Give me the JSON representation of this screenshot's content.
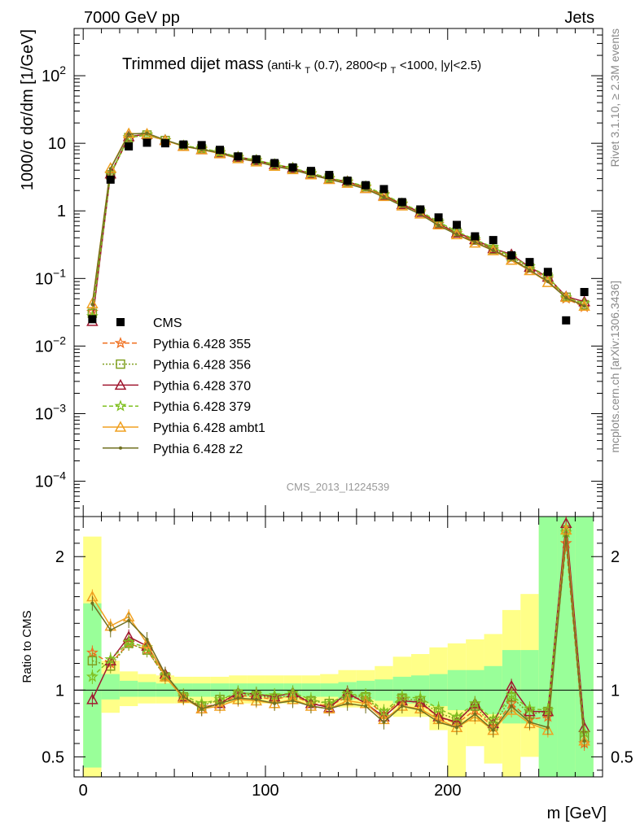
{
  "header": {
    "left": "7000 GeV pp",
    "right": "Jets"
  },
  "side_text": {
    "rivet": "Rivet 3.1.10, ≥ 2.3M events",
    "mcplots": "mcplots.cern.ch [arXiv:1306.3436]"
  },
  "watermark": "CMS_2013_I1224539",
  "chart_data": [
    {
      "type": "line",
      "title": "Trimmed dijet mass",
      "subtitle_parts": [
        "(anti-k",
        "T",
        "(0.7), 2800<p",
        "T",
        "<1000, |y|<2.5)"
      ],
      "ylabel": "1000/σ dσ/dm [1/GeV]",
      "yscale": "log",
      "ylim": [
        3e-05,
        500
      ],
      "xlim": [
        -5,
        285
      ],
      "yticks": [
        {
          "v": 100,
          "label": "10",
          "sup": "2"
        },
        {
          "v": 10,
          "label": "10",
          "sup": ""
        },
        {
          "v": 1,
          "label": "1",
          "sup": ""
        },
        {
          "v": 0.1,
          "label": "10",
          "sup": "−1"
        },
        {
          "v": 0.01,
          "label": "10",
          "sup": "−2"
        },
        {
          "v": 0.001,
          "label": "10",
          "sup": "−3"
        },
        {
          "v": 0.0001,
          "label": "10",
          "sup": "−4"
        }
      ],
      "x": [
        5,
        15,
        25,
        35,
        45,
        55,
        65,
        75,
        85,
        95,
        105,
        115,
        125,
        135,
        145,
        155,
        165,
        175,
        185,
        195,
        205,
        215,
        225,
        235,
        245,
        255,
        265,
        275
      ],
      "data": {
        "name": "CMS",
        "values": [
          0.025,
          2.9,
          9.0,
          10.2,
          10.0,
          9.6,
          9.4,
          8.0,
          6.4,
          5.8,
          5.1,
          4.4,
          3.9,
          3.4,
          2.8,
          2.4,
          2.1,
          1.35,
          1.05,
          0.8,
          0.62,
          0.42,
          0.37,
          0.22,
          0.175,
          0.125,
          0.024,
          0.063
        ]
      },
      "legend": [
        "CMS",
        "Pythia 6.428 355",
        "Pythia 6.428 356",
        "Pythia 6.428 370",
        "Pythia 6.428 379",
        "Pythia 6.428 ambt1",
        "Pythia 6.428 z2"
      ]
    },
    {
      "type": "line",
      "ylabel": "Ratio to CMS",
      "xlabel": "m [GeV]",
      "ylim": [
        0.35,
        2.3
      ],
      "xticks": [
        {
          "v": 0,
          "label": "0"
        },
        {
          "v": 100,
          "label": "100"
        },
        {
          "v": 200,
          "label": "200"
        }
      ],
      "yticks": [
        {
          "v": 0.5,
          "label": "0.5"
        },
        {
          "v": 1,
          "label": "1"
        },
        {
          "v": 2,
          "label": "2"
        }
      ],
      "bands": {
        "bins": [
          [
            0,
            10
          ],
          [
            10,
            20
          ],
          [
            20,
            30
          ],
          [
            30,
            40
          ],
          [
            40,
            50
          ],
          [
            50,
            60
          ],
          [
            60,
            70
          ],
          [
            70,
            80
          ],
          [
            80,
            90
          ],
          [
            90,
            100
          ],
          [
            100,
            110
          ],
          [
            110,
            120
          ],
          [
            120,
            130
          ],
          [
            130,
            140
          ],
          [
            140,
            150
          ],
          [
            150,
            160
          ],
          [
            160,
            170
          ],
          [
            170,
            180
          ],
          [
            180,
            190
          ],
          [
            190,
            200
          ],
          [
            200,
            210
          ],
          [
            210,
            220
          ],
          [
            220,
            230
          ],
          [
            230,
            240
          ],
          [
            240,
            250
          ],
          [
            250,
            260
          ],
          [
            260,
            270
          ],
          [
            270,
            280
          ]
        ],
        "green": [
          [
            0.42,
            1.65
          ],
          [
            0.93,
            1.12
          ],
          [
            0.95,
            1.07
          ],
          [
            0.95,
            1.06
          ],
          [
            0.95,
            1.05
          ],
          [
            0.95,
            1.05
          ],
          [
            0.95,
            1.05
          ],
          [
            0.95,
            1.05
          ],
          [
            0.95,
            1.05
          ],
          [
            0.95,
            1.05
          ],
          [
            0.95,
            1.05
          ],
          [
            0.95,
            1.05
          ],
          [
            0.95,
            1.05
          ],
          [
            0.95,
            1.05
          ],
          [
            0.93,
            1.06
          ],
          [
            0.93,
            1.07
          ],
          [
            0.92,
            1.08
          ],
          [
            0.9,
            1.1
          ],
          [
            0.9,
            1.11
          ],
          [
            0.88,
            1.12
          ],
          [
            0.85,
            1.15
          ],
          [
            0.85,
            1.15
          ],
          [
            0.82,
            1.18
          ],
          [
            0.75,
            1.3
          ],
          [
            0.75,
            1.3
          ],
          [
            0.35,
            2.3
          ],
          [
            0.35,
            2.3
          ],
          [
            0.35,
            2.3
          ]
        ],
        "yellow": [
          [
            0.35,
            2.15
          ],
          [
            0.83,
            1.22
          ],
          [
            0.88,
            1.14
          ],
          [
            0.9,
            1.12
          ],
          [
            0.9,
            1.11
          ],
          [
            0.9,
            1.1
          ],
          [
            0.9,
            1.1
          ],
          [
            0.9,
            1.1
          ],
          [
            0.9,
            1.11
          ],
          [
            0.9,
            1.11
          ],
          [
            0.9,
            1.11
          ],
          [
            0.9,
            1.11
          ],
          [
            0.9,
            1.11
          ],
          [
            0.89,
            1.12
          ],
          [
            0.87,
            1.15
          ],
          [
            0.87,
            1.15
          ],
          [
            0.85,
            1.18
          ],
          [
            0.8,
            1.25
          ],
          [
            0.8,
            1.27
          ],
          [
            0.7,
            1.32
          ],
          [
            0.35,
            1.35
          ],
          [
            0.58,
            1.38
          ],
          [
            0.45,
            1.42
          ],
          [
            0.35,
            1.6
          ],
          [
            0.5,
            1.72
          ],
          [
            0.35,
            2.3
          ],
          [
            0.35,
            2.3
          ],
          [
            0.35,
            2.3
          ]
        ]
      },
      "series": [
        {
          "name": "Pythia 6.428 355",
          "color": "#f07020",
          "dash": "6,3",
          "marker": "star",
          "ratio": [
            1.28,
            1.2,
            1.35,
            1.3,
            1.1,
            0.95,
            0.87,
            0.9,
            0.96,
            0.95,
            0.93,
            0.96,
            0.9,
            0.88,
            0.95,
            0.93,
            0.82,
            0.93,
            0.9,
            0.8,
            0.75,
            0.85,
            0.72,
            0.9,
            0.78,
            0.8,
            2.1,
            0.6
          ]
        },
        {
          "name": "Pythia 6.428 356",
          "color": "#80a020",
          "dash": "2,2",
          "marker": "opensquare",
          "ratio": [
            1.22,
            1.18,
            1.35,
            1.3,
            1.1,
            0.95,
            0.88,
            0.93,
            0.97,
            0.96,
            0.94,
            0.96,
            0.92,
            0.9,
            0.96,
            0.95,
            0.82,
            0.94,
            0.92,
            0.83,
            0.78,
            0.88,
            0.73,
            0.95,
            0.82,
            0.84,
            2.2,
            0.65
          ]
        },
        {
          "name": "Pythia 6.428 370",
          "color": "#a01830",
          "dash": "",
          "marker": "opentriangle",
          "ratio": [
            0.93,
            1.22,
            1.4,
            1.33,
            1.12,
            0.95,
            0.86,
            0.9,
            0.98,
            0.97,
            0.95,
            0.98,
            0.9,
            0.87,
            0.98,
            0.9,
            0.8,
            0.92,
            0.91,
            0.8,
            0.76,
            0.9,
            0.75,
            1.03,
            0.84,
            0.84,
            2.25,
            0.72
          ]
        },
        {
          "name": "Pythia 6.428 379",
          "color": "#80c020",
          "dash": "5,3",
          "marker": "star",
          "ratio": [
            1.1,
            1.23,
            1.36,
            1.32,
            1.11,
            0.96,
            0.9,
            0.93,
            0.98,
            0.97,
            0.96,
            0.98,
            0.93,
            0.9,
            0.97,
            0.96,
            0.84,
            0.95,
            0.94,
            0.86,
            0.8,
            0.9,
            0.78,
            0.96,
            0.86,
            0.85,
            2.18,
            0.68
          ]
        },
        {
          "name": "Pythia 6.428 ambt1",
          "color": "#f0a020",
          "dash": "",
          "marker": "opentriangle",
          "ratio": [
            1.7,
            1.48,
            1.55,
            1.35,
            1.1,
            0.94,
            0.86,
            0.88,
            0.93,
            0.92,
            0.9,
            0.93,
            0.88,
            0.86,
            0.92,
            0.9,
            0.78,
            0.88,
            0.86,
            0.78,
            0.72,
            0.8,
            0.7,
            0.85,
            0.75,
            0.7,
            2.2,
            0.62
          ]
        },
        {
          "name": "Pythia 6.428 z2",
          "color": "#707020",
          "dash": "",
          "marker": "dot",
          "ratio": [
            1.65,
            1.45,
            1.52,
            1.38,
            1.12,
            0.95,
            0.86,
            0.9,
            0.94,
            0.93,
            0.9,
            0.92,
            0.88,
            0.86,
            0.9,
            0.88,
            0.76,
            0.88,
            0.85,
            0.76,
            0.72,
            0.82,
            0.7,
            0.88,
            0.76,
            0.72,
            2.15,
            0.62
          ]
        }
      ]
    }
  ]
}
